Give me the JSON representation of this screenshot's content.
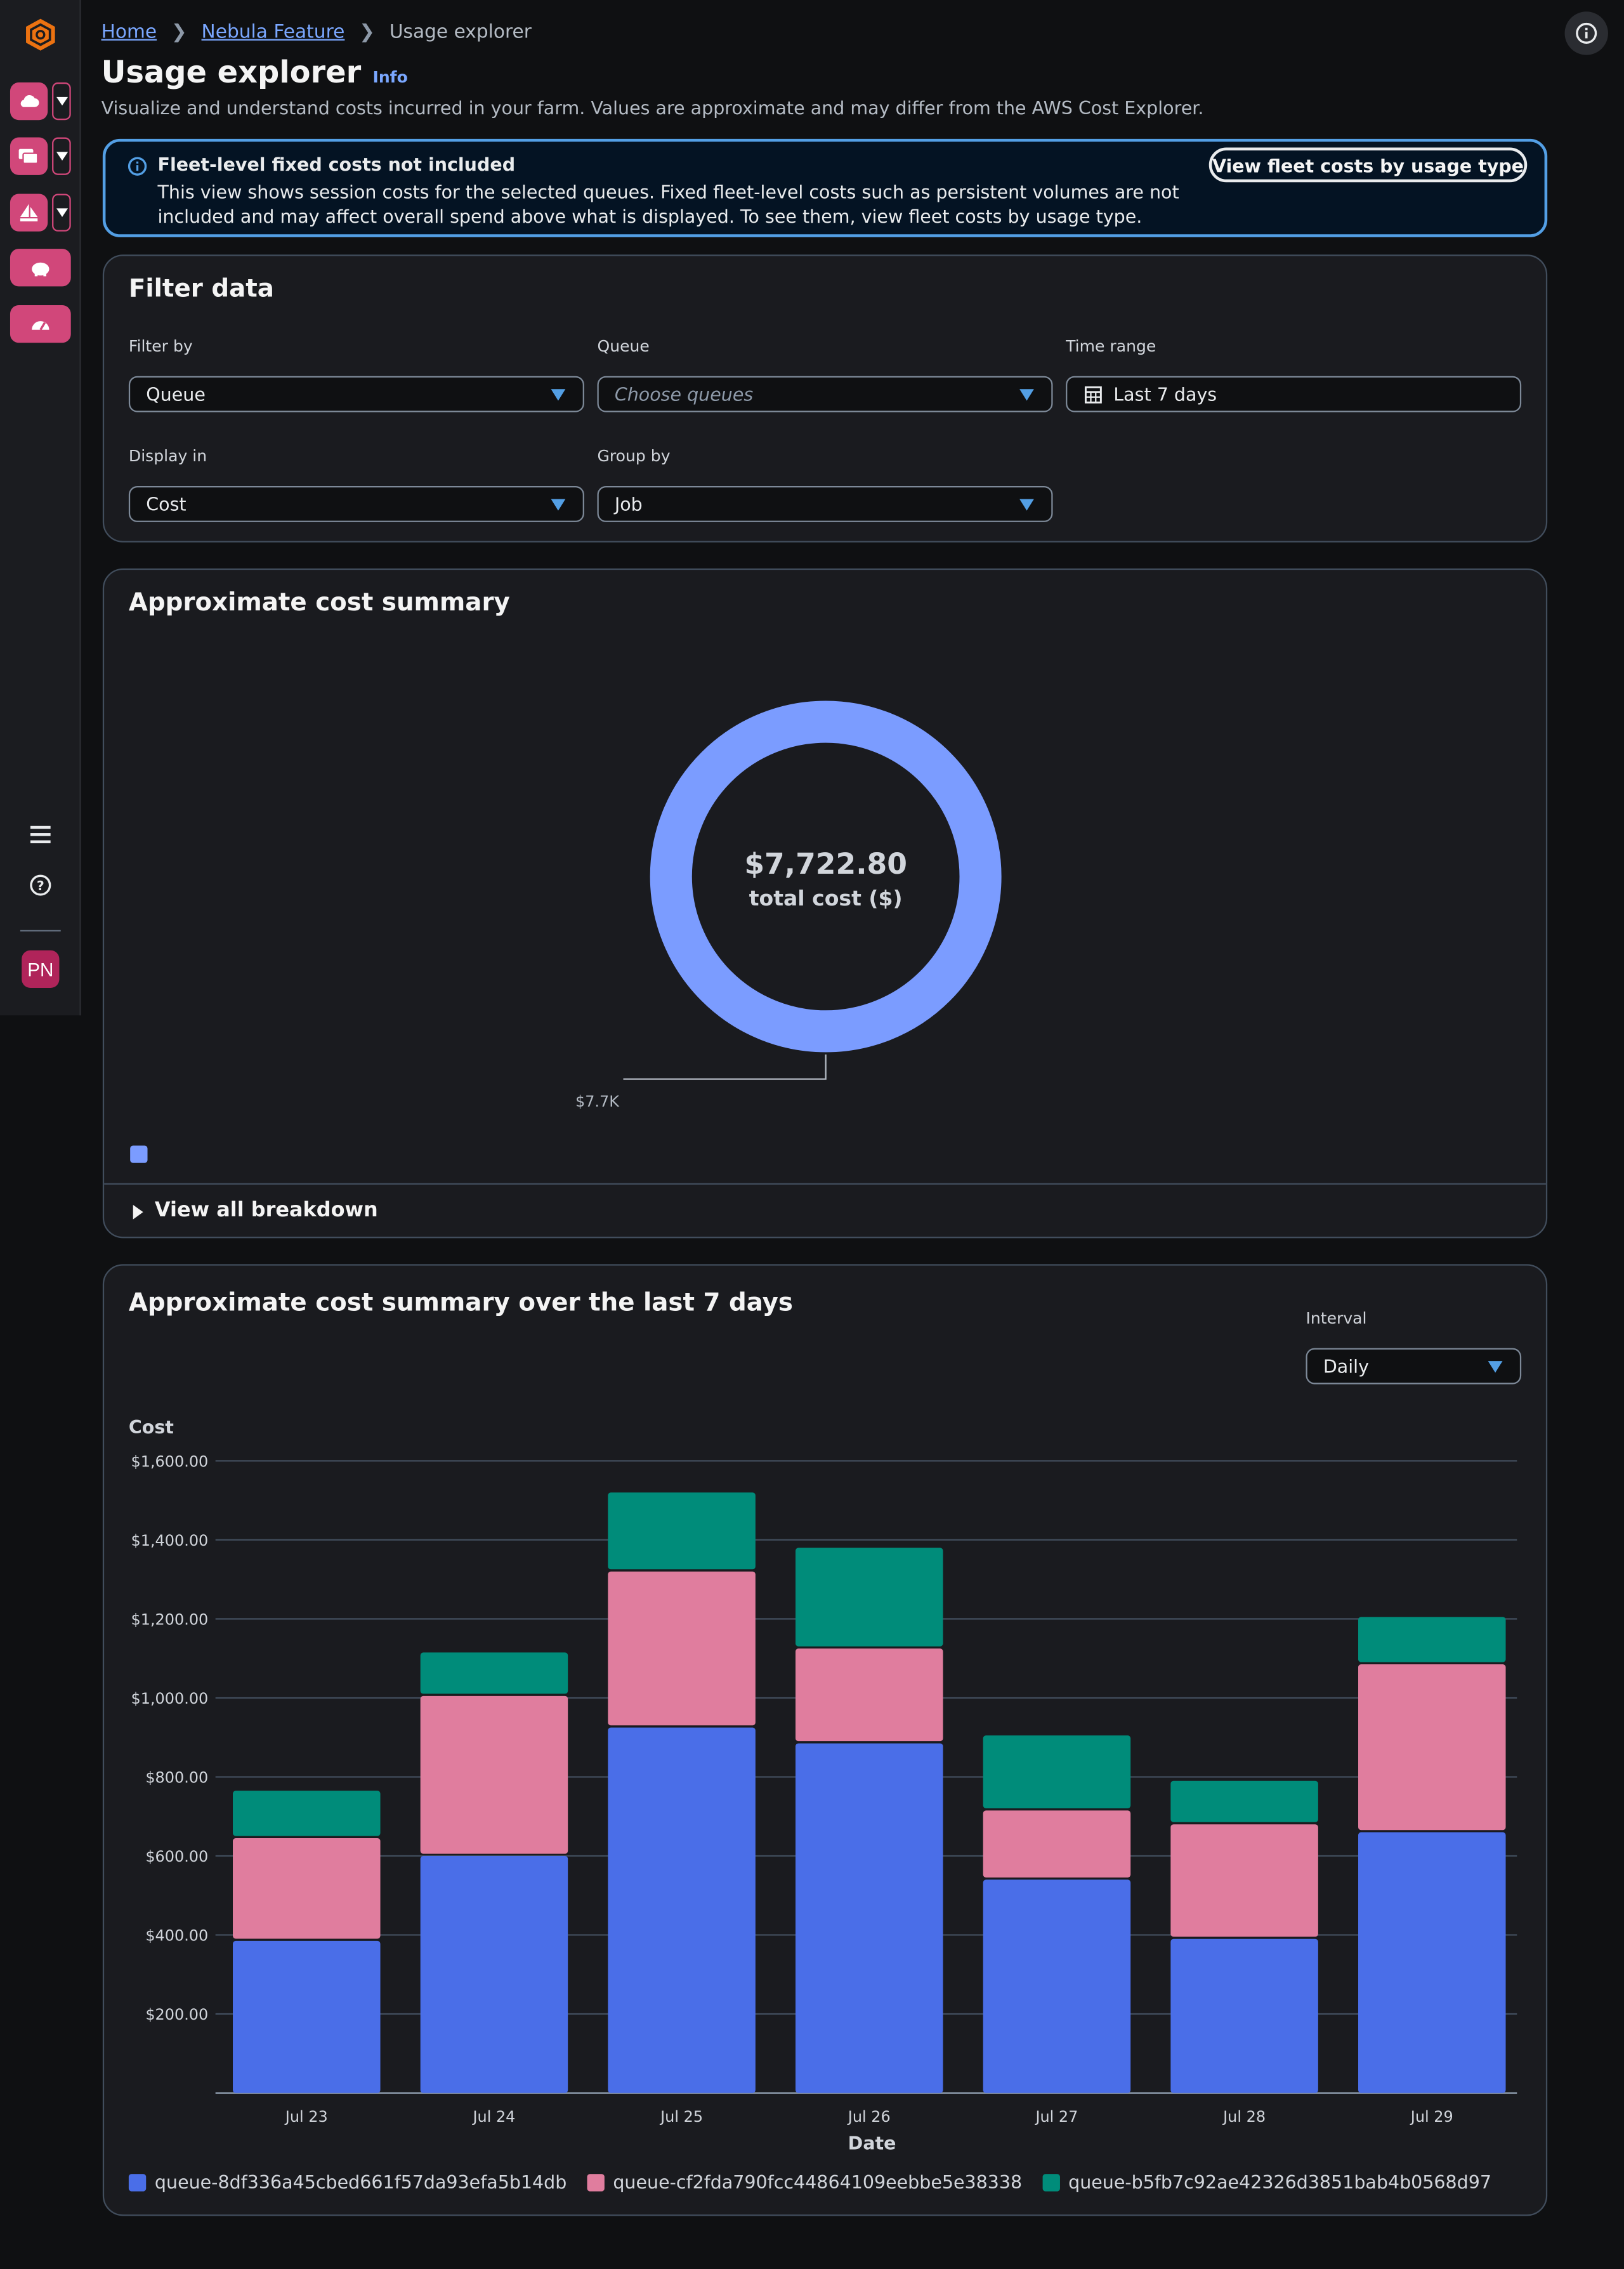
{
  "nav": {
    "avatar_initials": "PN"
  },
  "breadcrumb": {
    "items": [
      "Home",
      "Nebula Feature"
    ],
    "current": "Usage explorer"
  },
  "header": {
    "title": "Usage explorer",
    "info_label": "Info",
    "description": "Visualize and understand costs incurred in your farm. Values are approximate and may differ from the AWS Cost Explorer."
  },
  "alert": {
    "heading": "Fleet-level fixed costs not included",
    "body": "This view shows session costs for the selected queues. Fixed fleet-level costs such as persistent volumes are not included and may affect overall spend above what is displayed. To see them, view fleet costs by usage type.",
    "button_label": "View fleet costs by usage type",
    "border_color": "#539fe5"
  },
  "filters": {
    "title": "Filter data",
    "filter_by": {
      "label": "Filter by",
      "value": "Queue"
    },
    "queue": {
      "label": "Queue",
      "placeholder": "Choose queues"
    },
    "time_range": {
      "label": "Time range",
      "value": "Last 7 days"
    },
    "display_in": {
      "label": "Display in",
      "value": "Cost"
    },
    "group_by": {
      "label": "Group by",
      "value": "Job"
    }
  },
  "summary": {
    "title": "Approximate cost summary",
    "total_value": "$7,722.80",
    "total_label": "total cost ($)",
    "slice_label": "$7.7K",
    "donut_color": "#7b9cff",
    "breakdown_label": "View all breakdown"
  },
  "timeseries": {
    "title": "Approximate cost summary over the last 7 days",
    "interval": {
      "label": "Interval",
      "value": "Daily"
    }
  },
  "chart_data": {
    "type": "bar",
    "stacked": true,
    "title": "Approximate cost summary over the last 7 days",
    "ylabel": "Cost",
    "xlabel": "Date",
    "ylim": [
      0,
      1600
    ],
    "yticks": [
      "$200.00",
      "$400.00",
      "$600.00",
      "$800.00",
      "$1,000.00",
      "$1,200.00",
      "$1,400.00",
      "$1,600.00"
    ],
    "ytick_values": [
      200,
      400,
      600,
      800,
      1000,
      1200,
      1400,
      1600
    ],
    "categories": [
      "Jul 23",
      "Jul 24",
      "Jul 25",
      "Jul 26",
      "Jul 27",
      "Jul 28",
      "Jul 29"
    ],
    "series": [
      {
        "name": "queue-8df336a45cbed661f57da93efa5b14db",
        "color": "#4a6ee8",
        "values": [
          385,
          600,
          925,
          885,
          540,
          390,
          660
        ]
      },
      {
        "name": "queue-cf2fda790fcc44864109eebbe5e38338",
        "color": "#e07d9e",
        "values": [
          260,
          405,
          395,
          240,
          175,
          290,
          425
        ]
      },
      {
        "name": "queue-b5fb7c92ae42326d3851bab4b0568d97",
        "color": "#008c7a",
        "values": [
          120,
          110,
          200,
          255,
          190,
          110,
          120
        ]
      }
    ],
    "grid": true,
    "legend": "bottom-left"
  }
}
